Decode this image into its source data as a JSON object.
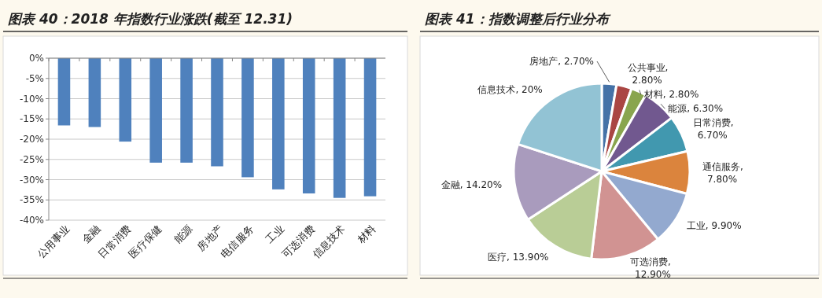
{
  "chart_data": [
    {
      "type": "bar",
      "title": "图表 40：2018 年指数行业涨跌(截至 12.31)",
      "categories": [
        "公用事业",
        "金融",
        "日常消费",
        "医疗保健",
        "能源",
        "房地产",
        "电信服务",
        "工业",
        "可选消费",
        "信息技术",
        "材料"
      ],
      "values": [
        -16.6,
        -17.0,
        -20.6,
        -25.8,
        -25.8,
        -26.7,
        -29.4,
        -32.4,
        -33.4,
        -34.5,
        -34.1
      ],
      "color": "#4f81bd",
      "ylim": [
        -40,
        0
      ],
      "yticks": [
        {
          "value": 0,
          "label": "0%"
        },
        {
          "value": -5,
          "label": "-5%"
        },
        {
          "value": -10,
          "label": "-10%"
        },
        {
          "value": -15,
          "label": "-15%"
        },
        {
          "value": -20,
          "label": "-20%"
        },
        {
          "value": -25,
          "label": "-25%"
        },
        {
          "value": -30,
          "label": "-30%"
        },
        {
          "value": -35,
          "label": "-35%"
        },
        {
          "value": -40,
          "label": "-40%"
        }
      ],
      "grid": "y"
    },
    {
      "type": "pie",
      "title": "图表 41：指数调整后行业分布",
      "categories": [
        "房地产",
        "公共事业",
        "材料",
        "能源",
        "日常消费",
        "通信服务",
        "工业",
        "可选消费",
        "医疗",
        "金融",
        "信息技术"
      ],
      "values": [
        2.7,
        2.8,
        2.8,
        6.3,
        6.7,
        7.8,
        9.9,
        12.9,
        13.9,
        14.2,
        20
      ],
      "value_labels": [
        ", 2.70%",
        ", 2.80%",
        ", 2.80%",
        ", 6.30%",
        ", 6.70%",
        ", 7.80%",
        ", 9.90%",
        ", 12.90%",
        ", 13.90%",
        ", 14.20%",
        ", 20%"
      ],
      "colors": [
        "#4572a7",
        "#aa4643",
        "#89a54e",
        "#71588f",
        "#4198af",
        "#db843d",
        "#93a9cf",
        "#d19392",
        "#b9cd96",
        "#a99bbd",
        "#92c3d4"
      ]
    }
  ]
}
